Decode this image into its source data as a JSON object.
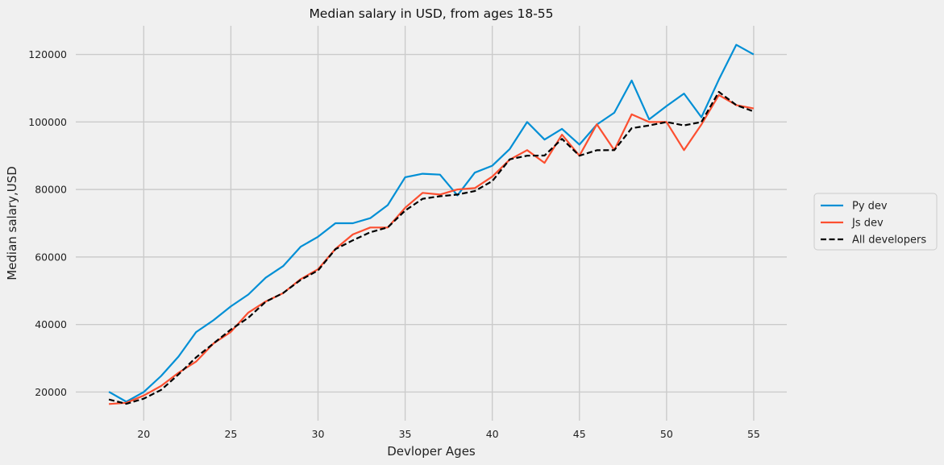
{
  "chart_data": {
    "type": "line",
    "title": "Median salary in USD, from ages 18-55",
    "xlabel": "Devloper Ages",
    "ylabel": "Median salary,USD",
    "x": [
      18,
      19,
      20,
      21,
      22,
      23,
      24,
      25,
      26,
      27,
      28,
      29,
      30,
      31,
      32,
      33,
      34,
      35,
      36,
      37,
      38,
      39,
      40,
      41,
      42,
      43,
      44,
      45,
      46,
      47,
      48,
      49,
      50,
      51,
      52,
      53,
      54,
      55
    ],
    "xlim": [
      16.1,
      56.9
    ],
    "ylim": [
      11500,
      128500
    ],
    "xticks": [
      20,
      25,
      30,
      35,
      40,
      45,
      50,
      55
    ],
    "yticks": [
      20000,
      40000,
      60000,
      80000,
      100000,
      120000
    ],
    "grid": true,
    "legend_position": "center-right outside",
    "series": [
      {
        "name": "Py dev",
        "color": "#008fd5",
        "style": "solid",
        "values": [
          20046,
          17100,
          20000,
          24744,
          30500,
          37732,
          41247,
          45372,
          48876,
          53850,
          57287,
          63016,
          65998,
          70003,
          70000,
          71496,
          75370,
          83640,
          84666,
          84392,
          78254,
          85000,
          87038,
          91991,
          100000,
          94796,
          97962,
          93302,
          99240,
          102736,
          112285,
          100771,
          104708,
          108423,
          101407,
          112542,
          122870,
          120000
        ]
      },
      {
        "name": "Js dev",
        "color": "#fc4f30",
        "style": "solid",
        "values": [
          16446,
          16791,
          18942,
          21780,
          25704,
          29000,
          34372,
          37810,
          43515,
          46823,
          49293,
          53437,
          56373,
          62375,
          66674,
          68745,
          68746,
          74583,
          79000,
          78508,
          79996,
          80403,
          83820,
          88833,
          91660,
          87892,
          96243,
          90000,
          99313,
          91660,
          102264,
          100000,
          100000,
          91660,
          99240,
          108000,
          105000,
          104000
        ]
      },
      {
        "name": "All developers",
        "color": "#000000",
        "style": "dashed",
        "values": [
          17784,
          16500,
          18012,
          20628,
          25206,
          30252,
          34368,
          38496,
          42000,
          46752,
          49320,
          53200,
          56000,
          62316,
          64928,
          67317,
          68748,
          73752,
          77232,
          78000,
          78508,
          79536,
          82488,
          88935,
          90000,
          90056,
          95000,
          90000,
          91633,
          91660,
          98150,
          98964,
          100000,
          98988,
          100000,
          108923,
          105000,
          103117
        ]
      }
    ]
  }
}
